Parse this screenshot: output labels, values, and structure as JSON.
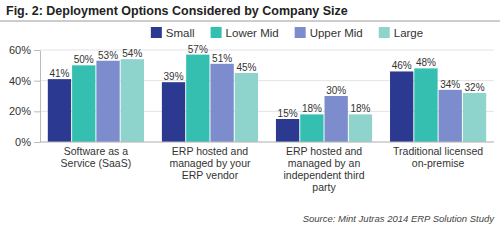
{
  "chart_data": {
    "type": "bar",
    "title": "Fig. 2: Deployment Options Considered by Company Size",
    "source": "Source: Mint Jutras 2014 ERP Solution Study",
    "categories": [
      "Software as a Service (SaaS)",
      "ERP hosted and managed by your ERP vendor",
      "ERP hosted and managed by an independent third party",
      "Traditional licensed on-premise"
    ],
    "series": [
      {
        "name": "Small",
        "color": "#2b3990",
        "values": [
          41,
          39,
          15,
          46
        ],
        "value_labels": [
          "41%",
          "39%",
          "15%",
          "46%"
        ]
      },
      {
        "name": "Lower Mid",
        "color": "#34bfb0",
        "values": [
          50,
          57,
          18,
          48
        ],
        "value_labels": [
          "50%",
          "57%",
          "18%",
          "48%"
        ]
      },
      {
        "name": "Upper Mid",
        "color": "#7d8ccd",
        "values": [
          53,
          51,
          30,
          34
        ],
        "value_labels": [
          "53%",
          "51%",
          "30%",
          "34%"
        ]
      },
      {
        "name": "Large",
        "color": "#8fd3cd",
        "values": [
          54,
          45,
          18,
          32
        ],
        "value_labels": [
          "54%",
          "45%",
          "18%",
          "32%"
        ]
      }
    ],
    "ylim": [
      0,
      60
    ],
    "yticks": [
      {
        "value": 0,
        "label": "0%"
      },
      {
        "value": 20,
        "label": "20%"
      },
      {
        "value": 40,
        "label": "40%"
      },
      {
        "value": 60,
        "label": "60%"
      }
    ],
    "grid": true,
    "data_labels": true,
    "legend": "top"
  }
}
